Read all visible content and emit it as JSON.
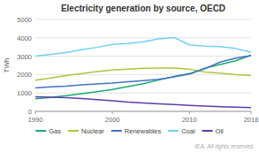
{
  "chart_data": {
    "type": "line",
    "title": "Electricity generation by source, OECD",
    "ylabel": "TWh",
    "annotations": [
      "IEA. All rights reserved."
    ],
    "x": [
      1990,
      1992,
      1994,
      1996,
      1998,
      2000,
      2002,
      2004,
      2006,
      2008,
      2010,
      2012,
      2014,
      2016,
      2018
    ],
    "series": [
      {
        "name": "Gas",
        "color": "#1aab6d",
        "values": [
          680,
          760,
          850,
          960,
          1070,
          1190,
          1350,
          1500,
          1700,
          1900,
          2050,
          2350,
          2550,
          2750,
          3050
        ]
      },
      {
        "name": "Nuclear",
        "color": "#a8c83a",
        "values": [
          1700,
          1820,
          1950,
          2060,
          2160,
          2250,
          2290,
          2340,
          2360,
          2360,
          2290,
          2140,
          2080,
          2000,
          1960
        ]
      },
      {
        "name": "Renewables",
        "color": "#4472c4",
        "values": [
          1280,
          1330,
          1370,
          1440,
          1490,
          1540,
          1610,
          1670,
          1740,
          1880,
          2030,
          2320,
          2680,
          2900,
          3030
        ]
      },
      {
        "name": "Coal",
        "color": "#70d0f0",
        "values": [
          3000,
          3100,
          3200,
          3350,
          3480,
          3640,
          3690,
          3790,
          3940,
          4020,
          3620,
          3540,
          3520,
          3420,
          3220
        ]
      },
      {
        "name": "Oil",
        "color": "#5b3ea6",
        "values": [
          790,
          770,
          740,
          700,
          640,
          580,
          510,
          460,
          410,
          370,
          330,
          290,
          255,
          225,
          205
        ]
      }
    ],
    "xlim": [
      1990,
      2018
    ],
    "xticks": [
      1990,
      2000,
      2010,
      2018
    ],
    "ylim": [
      0,
      5000
    ],
    "yticks": [
      0,
      1000,
      2000,
      3000,
      4000,
      5000
    ],
    "grid": true,
    "legend": "bottom"
  }
}
